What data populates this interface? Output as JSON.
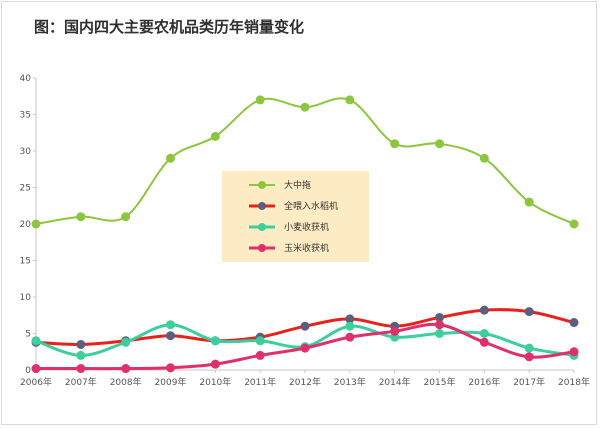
{
  "chart_data": {
    "type": "line",
    "title": "图：国内四大主要农机品类历年销量变化",
    "xlabel": "",
    "ylabel": "",
    "ylim": [
      0,
      40
    ],
    "yticks": [
      "0",
      "5",
      "10",
      "15",
      "20",
      "25",
      "30",
      "35",
      "40"
    ],
    "categories": [
      "2006年",
      "2007年",
      "2008年",
      "2009年",
      "2010年",
      "2011年",
      "2012年",
      "2013年",
      "2014年",
      "2015年",
      "2016年",
      "2017年",
      "2018年"
    ],
    "grid": false,
    "legend_position": "center",
    "series": [
      {
        "name": "大中拖",
        "line_color": "#8cc63f",
        "marker_color": "#8cc63f",
        "values": [
          20,
          21,
          21,
          29,
          32,
          37,
          36,
          37,
          31,
          31,
          29,
          23,
          20
        ]
      },
      {
        "name": "全喂入水稻机",
        "line_color": "#e8211c",
        "marker_color": "#5d5f7a",
        "values": [
          3.8,
          3.5,
          4,
          4.7,
          4,
          4.5,
          6,
          7,
          6,
          7.2,
          8.2,
          8,
          6.5
        ]
      },
      {
        "name": "小麦收获机",
        "line_color": "#3ccf9b",
        "marker_color": "#3ccf9b",
        "values": [
          4,
          2,
          3.8,
          6.2,
          4,
          4,
          3.2,
          6,
          4.5,
          5,
          5,
          3,
          2
        ]
      },
      {
        "name": "玉米收获机",
        "line_color": "#e0306b",
        "marker_color": "#e0306b",
        "values": [
          0.2,
          0.2,
          0.2,
          0.3,
          0.8,
          2,
          3,
          4.5,
          5.3,
          6.2,
          3.8,
          1.8,
          2.5
        ]
      }
    ]
  },
  "colors": {
    "axis": "#c7c7c7",
    "legend_background": "#fdecc3"
  }
}
